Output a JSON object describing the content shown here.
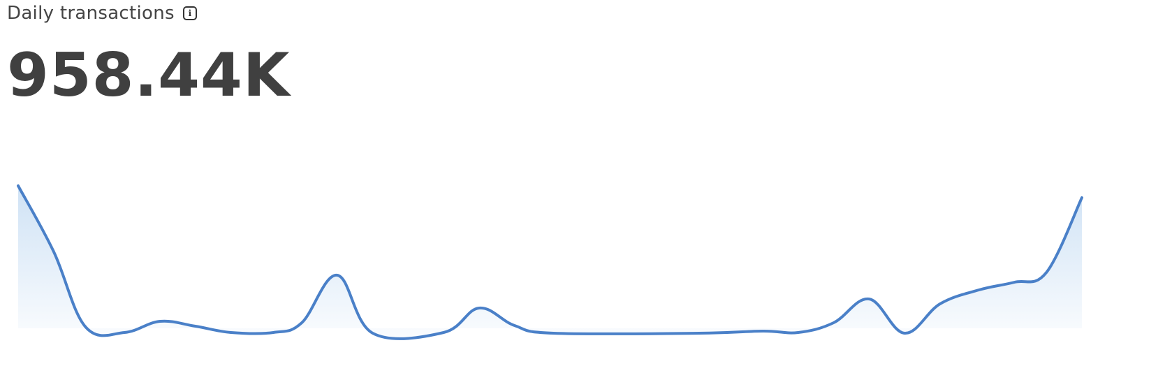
{
  "header": {
    "title": "Daily transactions",
    "info_icon": "info-icon",
    "value": "958.44K"
  },
  "chart_data": {
    "type": "area",
    "title": "",
    "xlabel": "",
    "ylabel": "",
    "axes_visible": false,
    "grid": false,
    "legend": "none",
    "curve": "smooth",
    "line_color": "#4a80c8",
    "fill_color": "#cfe2f5",
    "x": [
      0,
      1,
      1.9,
      3,
      4,
      5,
      6,
      7.2,
      8,
      9,
      10,
      12,
      13,
      14,
      15.1,
      19.2,
      21,
      22,
      23,
      24,
      25,
      26,
      27.1,
      28.1,
      29,
      30
    ],
    "values": [
      214,
      120,
      12,
      4,
      20,
      13,
      4,
      4,
      18,
      86,
      3,
      4,
      39,
      14,
      3,
      3,
      6,
      4,
      18,
      52,
      3,
      45,
      65,
      76,
      90,
      197
    ],
    "ylim": [
      0,
      214
    ]
  }
}
